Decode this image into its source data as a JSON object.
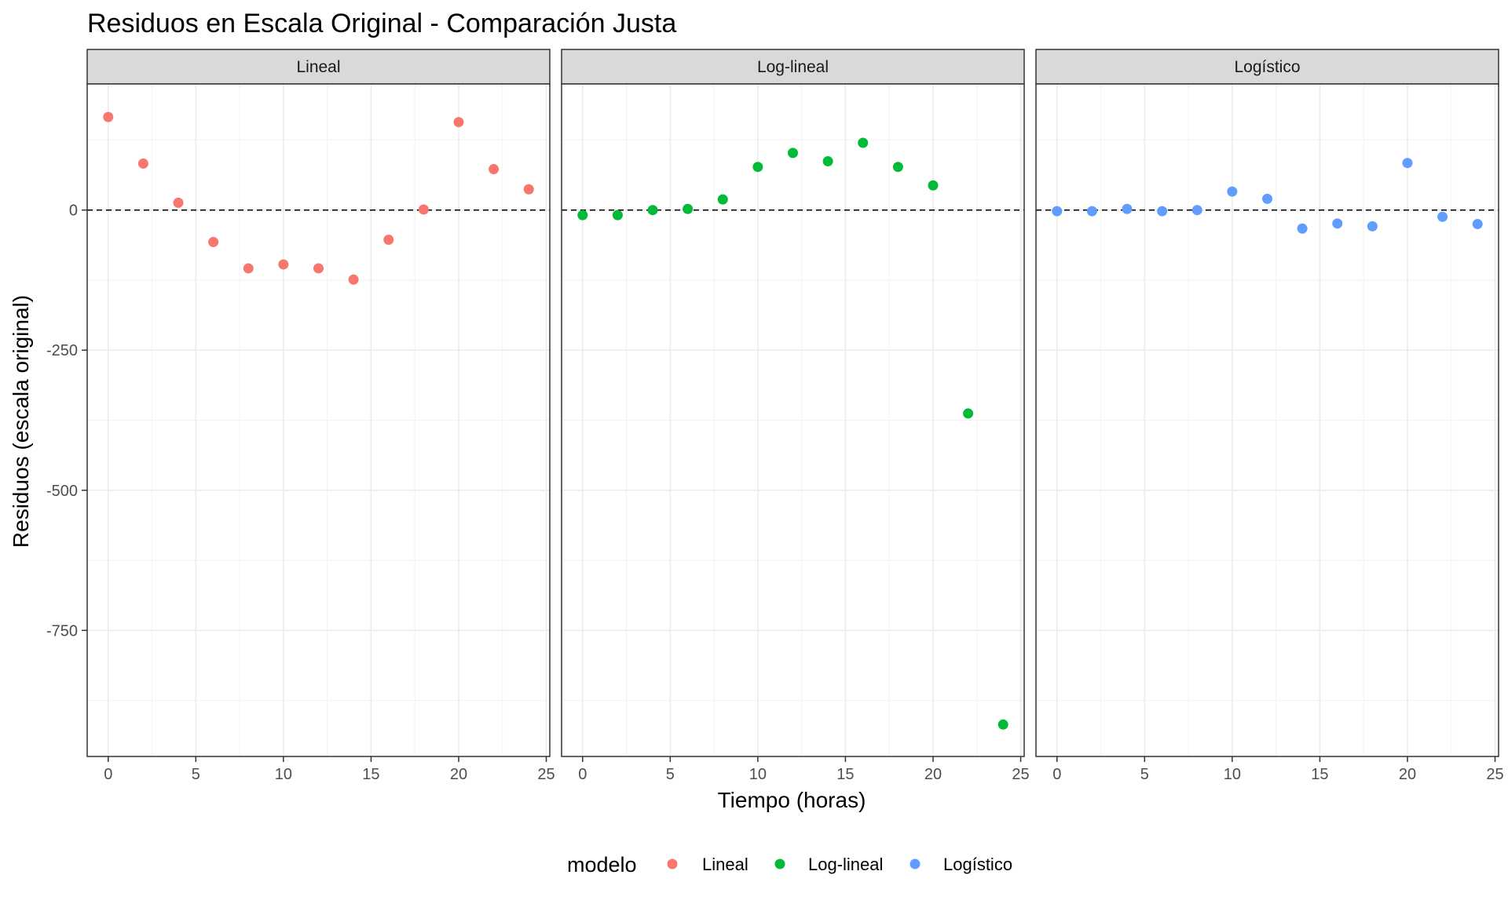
{
  "chart_data": {
    "type": "scatter",
    "title": "Residuos en Escala Original - Comparación Justa",
    "xlabel": "Tiempo (horas)",
    "ylabel": "Residuos (escala original)",
    "xlim": [
      -1.2,
      25.2
    ],
    "ylim": [
      -975,
      225
    ],
    "x_ticks": [
      0,
      5,
      10,
      15,
      20,
      25
    ],
    "x_tick_labels": [
      "0",
      "5",
      "10",
      "15",
      "20",
      "25"
    ],
    "y_ticks": [
      0,
      -250,
      -500,
      -750
    ],
    "y_tick_labels": [
      "0",
      "-250",
      "-500",
      "-750"
    ],
    "grid": true,
    "reference_line": {
      "y": 0,
      "style": "dashed"
    },
    "legend": {
      "title": "modelo",
      "position": "bottom",
      "entries": [
        {
          "label": "Lineal",
          "color": "#F8766D"
        },
        {
          "label": "Log-lineal",
          "color": "#00BA38"
        },
        {
          "label": "Logístico",
          "color": "#619CFF"
        }
      ]
    },
    "panels": [
      {
        "strip": "Lineal",
        "color": "#F8766D",
        "x": [
          0,
          2,
          4,
          6,
          8,
          10,
          12,
          14,
          16,
          18,
          20,
          22,
          24
        ],
        "y": [
          166,
          83,
          13,
          -57,
          -104,
          -97,
          -104,
          -124,
          -53,
          1,
          157,
          73,
          37
        ]
      },
      {
        "strip": "Log-lineal",
        "color": "#00BA38",
        "x": [
          0,
          2,
          4,
          6,
          8,
          10,
          12,
          14,
          16,
          18,
          20,
          22,
          24
        ],
        "y": [
          -9,
          -9,
          0,
          2,
          19,
          77,
          102,
          87,
          120,
          77,
          44,
          -363,
          -918
        ]
      },
      {
        "strip": "Logístico",
        "color": "#619CFF",
        "x": [
          0,
          2,
          4,
          6,
          8,
          10,
          12,
          14,
          16,
          18,
          20,
          22,
          24
        ],
        "y": [
          -2,
          -2,
          2,
          -2,
          0,
          33,
          20,
          -33,
          -24,
          -29,
          84,
          -12,
          -25
        ]
      }
    ]
  }
}
